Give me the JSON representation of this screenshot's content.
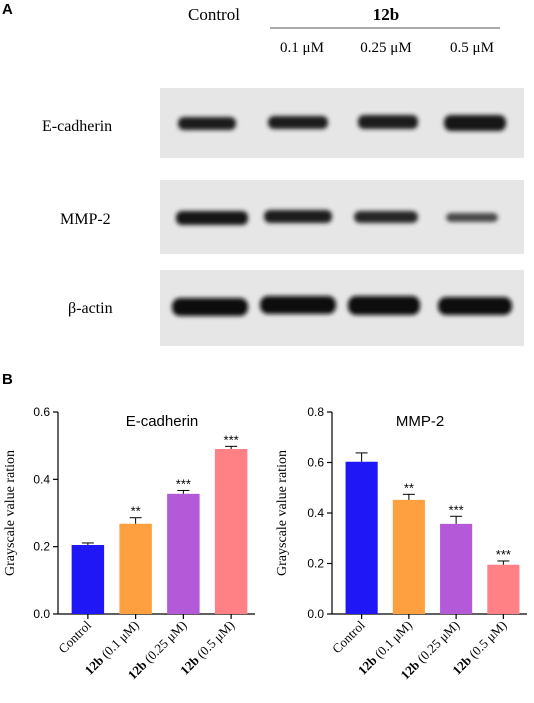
{
  "panel_labels": {
    "a": "A",
    "b": "B"
  },
  "blot": {
    "control_label": "Control",
    "group_label": "12b",
    "concentrations": [
      "0.1 μM",
      "0.25 μM",
      "0.5 μM"
    ],
    "rows": [
      {
        "label": "E-cadherin"
      },
      {
        "label": "MMP-2"
      },
      {
        "label": "β-actin"
      }
    ]
  },
  "x_categories": [
    {
      "bold": "",
      "rest": "Control"
    },
    {
      "bold": "12b",
      "rest": " (0.1 μM)"
    },
    {
      "bold": "12b",
      "rest": " (0.25 μM)"
    },
    {
      "bold": "12b",
      "rest": " (0.5 μM)"
    }
  ],
  "bar_colors": [
    "#1f17f5",
    "#ffa040",
    "#b45ad8",
    "#ff8085"
  ],
  "chart_data": [
    {
      "type": "bar",
      "title": "E-cadherin",
      "ylabel": "Grayscale value ration",
      "categories": [
        "Control",
        "12b (0.1 μM)",
        "12b (0.25 μM)",
        "12b (0.5 μM)"
      ],
      "values": [
        0.205,
        0.268,
        0.357,
        0.49
      ],
      "errors": [
        0.006,
        0.018,
        0.01,
        0.008
      ],
      "significance": [
        "",
        "**",
        "***",
        "***"
      ],
      "ylim": [
        0,
        0.6
      ],
      "yticks": [
        "0.0",
        "0.2",
        "0.4",
        "0.6"
      ]
    },
    {
      "type": "bar",
      "title": "MMP-2",
      "ylabel": "Grayscale value ration",
      "categories": [
        "Control",
        "12b (0.1 μM)",
        "12b (0.25 μM)",
        "12b (0.5 μM)"
      ],
      "values": [
        0.603,
        0.452,
        0.357,
        0.195
      ],
      "errors": [
        0.035,
        0.022,
        0.03,
        0.015
      ],
      "significance": [
        "",
        "**",
        "***",
        "***"
      ],
      "ylim": [
        0,
        0.8
      ],
      "yticks": [
        "0.0",
        "0.2",
        "0.4",
        "0.6",
        "0.8"
      ]
    }
  ]
}
